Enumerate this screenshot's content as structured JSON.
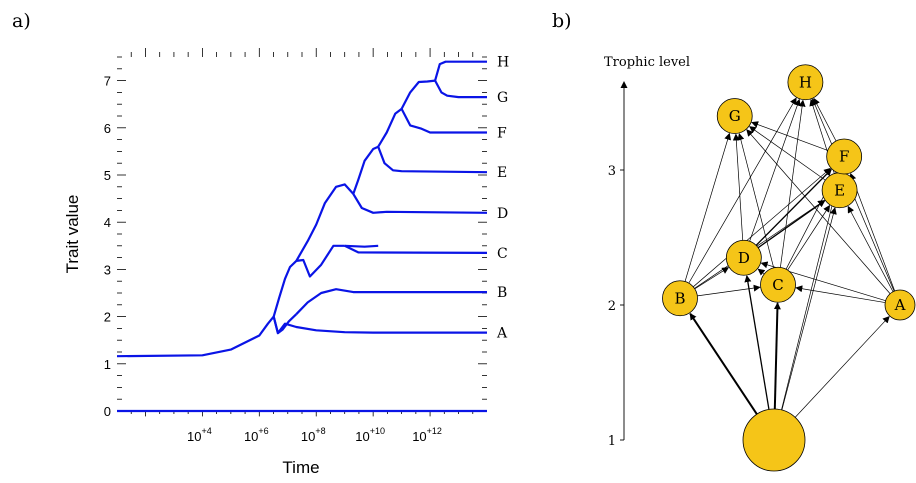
{
  "chart_data": [
    {
      "panel": "a)",
      "type": "line",
      "xlabel": "Time",
      "ylabel": "Trait value",
      "x_scale": "log",
      "xlim": [
        10,
        100000000000000
      ],
      "ylim": [
        0,
        7.5
      ],
      "y_ticks": [
        {
          "value": 0,
          "label": "0"
        },
        {
          "value": 1,
          "label": "1"
        },
        {
          "value": 2,
          "label": "2"
        },
        {
          "value": 3,
          "label": "3"
        },
        {
          "value": 4,
          "label": "4"
        },
        {
          "value": 5,
          "label": "5"
        },
        {
          "value": 6,
          "label": "6"
        },
        {
          "value": 7,
          "label": "7"
        }
      ],
      "x_ticks": [
        {
          "value": 10000,
          "base": "10",
          "exp": "+4"
        },
        {
          "value": 1000000,
          "base": "10",
          "exp": "+6"
        },
        {
          "value": 100000000,
          "base": "10",
          "exp": "+8"
        },
        {
          "value": 10000000000,
          "base": "10",
          "exp": "+10"
        },
        {
          "value": 1000000000000,
          "base": "10",
          "exp": "+12"
        }
      ],
      "line_color": "#0a14e6",
      "series": [
        {
          "name": "root",
          "x": [
            10,
            10000,
            100000,
            1000000,
            2000000,
            3200000
          ],
          "y": [
            1.16,
            1.18,
            1.3,
            1.6,
            1.85,
            2.0
          ]
        },
        {
          "name": "",
          "x": [
            10,
            100000000000000
          ],
          "y": [
            0.0,
            0.0
          ]
        },
        {
          "name": "A",
          "x": [
            3200000,
            4500000,
            8000000,
            20000000,
            100000000,
            1000000000,
            10000000000,
            100000000000000
          ],
          "y": [
            2.0,
            1.65,
            1.85,
            1.78,
            1.71,
            1.67,
            1.66,
            1.66
          ]
        },
        {
          "name": "",
          "x": [
            3200000,
            4500000,
            6500000,
            11000000,
            20000000
          ],
          "y": [
            2.0,
            1.65,
            1.72,
            1.9,
            2.05
          ]
        },
        {
          "name": "",
          "x": [
            3200000,
            5000000,
            8000000,
            12000000,
            20000000
          ],
          "y": [
            2.0,
            2.4,
            2.8,
            3.05,
            3.18
          ]
        },
        {
          "name": "B",
          "x": [
            20000000,
            50000000,
            150000000,
            500000000,
            2000000000,
            100000000000000
          ],
          "y": [
            2.05,
            2.3,
            2.5,
            2.58,
            2.52,
            2.52
          ]
        },
        {
          "name": "",
          "x": [
            20000000,
            35000000,
            60000000,
            150000000,
            400000000,
            1000000000
          ],
          "y": [
            3.18,
            3.2,
            2.85,
            3.1,
            3.5,
            3.5
          ]
        },
        {
          "name": "C",
          "x": [
            1000000000,
            3000000000,
            100000000000000
          ],
          "y": [
            3.5,
            3.36,
            3.35
          ]
        },
        {
          "name": "",
          "x": [
            1000000000,
            5000000000,
            15000000000
          ],
          "y": [
            3.5,
            3.48,
            3.5
          ]
        },
        {
          "name": "",
          "x": [
            20000000,
            50000000,
            100000000,
            200000000,
            500000000,
            1000000000,
            2000000000
          ],
          "y": [
            3.18,
            3.6,
            3.95,
            4.4,
            4.75,
            4.8,
            4.6
          ]
        },
        {
          "name": "D",
          "x": [
            2000000000,
            4000000000,
            10000000000,
            30000000000,
            100000000000000
          ],
          "y": [
            4.6,
            4.3,
            4.2,
            4.22,
            4.2
          ]
        },
        {
          "name": "",
          "x": [
            2000000000,
            3000000000,
            5000000000,
            10000000000,
            15000000000
          ],
          "y": [
            4.6,
            4.9,
            5.3,
            5.55,
            5.6
          ]
        },
        {
          "name": "E",
          "x": [
            15000000000,
            25000000000,
            50000000000,
            100000000000,
            100000000000000
          ],
          "y": [
            5.6,
            5.25,
            5.1,
            5.08,
            5.06
          ]
        },
        {
          "name": "",
          "x": [
            15000000000,
            30000000000,
            60000000000,
            100000000000
          ],
          "y": [
            5.6,
            5.9,
            6.3,
            6.4
          ]
        },
        {
          "name": "F",
          "x": [
            100000000000,
            200000000000,
            500000000000,
            1000000000000,
            100000000000000
          ],
          "y": [
            6.4,
            6.05,
            5.98,
            5.9,
            5.9
          ]
        },
        {
          "name": "",
          "x": [
            100000000000,
            200000000000,
            400000000000,
            800000000000,
            1500000000000
          ],
          "y": [
            6.4,
            6.75,
            6.97,
            6.98,
            7.0
          ]
        },
        {
          "name": "G",
          "x": [
            1500000000000,
            2500000000000,
            4000000000000,
            10000000000000,
            100000000000000
          ],
          "y": [
            7.0,
            6.75,
            6.68,
            6.65,
            6.65
          ]
        },
        {
          "name": "H",
          "x": [
            1500000000000,
            2200000000000,
            3500000000000,
            100000000000000
          ],
          "y": [
            7.0,
            7.35,
            7.4,
            7.4
          ]
        }
      ],
      "branch_labels": [
        {
          "text": "A",
          "y": 1.66
        },
        {
          "text": "B",
          "y": 2.52
        },
        {
          "text": "C",
          "y": 3.35
        },
        {
          "text": "D",
          "y": 4.2
        },
        {
          "text": "E",
          "y": 5.06
        },
        {
          "text": "F",
          "y": 5.9
        },
        {
          "text": "G",
          "y": 6.65
        },
        {
          "text": "H",
          "y": 7.4
        }
      ]
    },
    {
      "panel": "b)",
      "type": "network",
      "ylabel": "Trophic level",
      "y_ticks": [
        {
          "value": 1,
          "label": "1"
        },
        {
          "value": 2,
          "label": "2"
        },
        {
          "value": 3,
          "label": "3"
        }
      ],
      "node_color": "#f5c518",
      "nodes": [
        {
          "id": "root",
          "label": "",
          "level": 1.0,
          "pos": 0.5
        },
        {
          "id": "A",
          "label": "A",
          "level": 2.0,
          "pos": 1.0
        },
        {
          "id": "B",
          "label": "B",
          "level": 2.05,
          "pos": 0.0
        },
        {
          "id": "C",
          "label": "C",
          "level": 2.15,
          "pos": 0.43
        },
        {
          "id": "D",
          "label": "D",
          "level": 2.35,
          "pos": 0.28
        },
        {
          "id": "E",
          "label": "E",
          "level": 2.85,
          "pos": 0.7
        },
        {
          "id": "F",
          "label": "F",
          "level": 3.1,
          "pos": 0.72
        },
        {
          "id": "G",
          "label": "G",
          "level": 3.4,
          "pos": 0.24
        },
        {
          "id": "H",
          "label": "H",
          "level": 3.65,
          "pos": 0.55
        }
      ],
      "edges": [
        {
          "from": "root",
          "to": "B",
          "weight": 2
        },
        {
          "from": "root",
          "to": "C",
          "weight": 2
        },
        {
          "from": "root",
          "to": "D",
          "weight": 1.3
        },
        {
          "from": "root",
          "to": "A",
          "weight": 0.7
        },
        {
          "from": "root",
          "to": "E",
          "weight": 0.7
        },
        {
          "from": "root",
          "to": "F",
          "weight": 0.7
        },
        {
          "from": "B",
          "to": "C",
          "weight": 0.7
        },
        {
          "from": "B",
          "to": "D",
          "weight": 0.7
        },
        {
          "from": "B",
          "to": "G",
          "weight": 0.7
        },
        {
          "from": "B",
          "to": "H",
          "weight": 0.7
        },
        {
          "from": "B",
          "to": "E",
          "weight": 0.7
        },
        {
          "from": "B",
          "to": "F",
          "weight": 0.7
        },
        {
          "from": "A",
          "to": "C",
          "weight": 0.7
        },
        {
          "from": "A",
          "to": "D",
          "weight": 0.7
        },
        {
          "from": "A",
          "to": "E",
          "weight": 0.7
        },
        {
          "from": "A",
          "to": "F",
          "weight": 0.7
        },
        {
          "from": "A",
          "to": "G",
          "weight": 0.7
        },
        {
          "from": "A",
          "to": "H",
          "weight": 0.7
        },
        {
          "from": "C",
          "to": "D",
          "weight": 0.7
        },
        {
          "from": "C",
          "to": "E",
          "weight": 0.7
        },
        {
          "from": "C",
          "to": "F",
          "weight": 0.7
        },
        {
          "from": "C",
          "to": "G",
          "weight": 0.7
        },
        {
          "from": "C",
          "to": "H",
          "weight": 0.7
        },
        {
          "from": "D",
          "to": "E",
          "weight": 1.3
        },
        {
          "from": "D",
          "to": "F",
          "weight": 1.3
        },
        {
          "from": "D",
          "to": "G",
          "weight": 0.7
        },
        {
          "from": "D",
          "to": "H",
          "weight": 0.7
        },
        {
          "from": "E",
          "to": "G",
          "weight": 0.7
        },
        {
          "from": "E",
          "to": "H",
          "weight": 0.7
        },
        {
          "from": "E",
          "to": "F",
          "weight": 0.7
        },
        {
          "from": "F",
          "to": "G",
          "weight": 0.7
        },
        {
          "from": "F",
          "to": "H",
          "weight": 0.7
        }
      ]
    }
  ]
}
